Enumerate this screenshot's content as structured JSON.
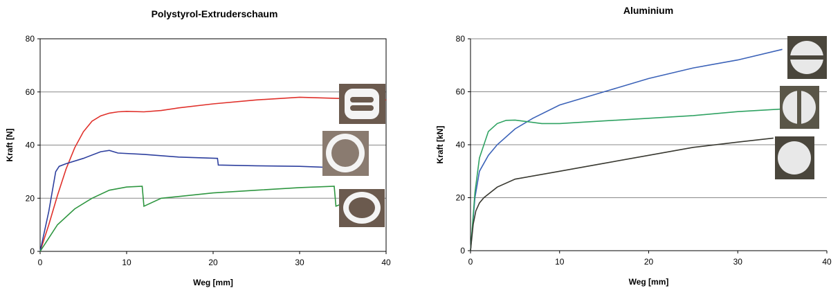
{
  "chart_data": [
    {
      "type": "line",
      "title": "Polystyrol-Extruderschaum",
      "x_label": "Weg [mm]",
      "y_label": "Kraft [N]",
      "xlim": [
        0,
        40
      ],
      "ylim": [
        0,
        80
      ],
      "xticks": [
        0,
        10,
        20,
        30,
        40
      ],
      "yticks": [
        0,
        20,
        40,
        60,
        80
      ],
      "grid": true,
      "series": [
        {
          "color": "#e0302a",
          "x": [
            0,
            1,
            2,
            3,
            4,
            5,
            6,
            7,
            8,
            9,
            10,
            12,
            14,
            16,
            20,
            25,
            30,
            35,
            40
          ],
          "values": [
            0,
            10,
            21,
            31,
            39,
            45,
            49,
            51,
            52,
            52.5,
            52.7,
            52.5,
            53,
            54,
            55.5,
            57,
            58,
            57.5,
            57
          ]
        },
        {
          "color": "#2d3f9e",
          "x": [
            0,
            1,
            1.8,
            2.2,
            3,
            5,
            7,
            8,
            9,
            12,
            16,
            20.5,
            20.6,
            25,
            30,
            34
          ],
          "values": [
            0,
            15,
            30,
            32,
            33,
            35,
            37.5,
            38,
            37,
            36.5,
            35.5,
            35,
            32.5,
            32.2,
            32,
            31.5
          ]
        },
        {
          "color": "#2e9640",
          "x": [
            0,
            1,
            2,
            4,
            6,
            8,
            10,
            11.8,
            12,
            14,
            20,
            25,
            30,
            34,
            34.2,
            35
          ],
          "values": [
            0,
            5,
            10,
            16,
            20,
            23,
            24.2,
            24.5,
            17,
            20,
            22,
            23,
            24,
            24.5,
            17,
            18
          ]
        }
      ]
    },
    {
      "type": "line",
      "title": "Aluminium",
      "x_label": "Weg [mm]",
      "y_label": "Kraft [kN]",
      "xlim": [
        0,
        40
      ],
      "ylim": [
        0,
        80
      ],
      "xticks": [
        0,
        10,
        20,
        30,
        40
      ],
      "yticks": [
        0,
        20,
        40,
        60,
        80
      ],
      "grid": true,
      "series": [
        {
          "color": "#3b62b8",
          "x": [
            0,
            0.5,
            1,
            2,
            3,
            5,
            7,
            10,
            15,
            20,
            25,
            30,
            35
          ],
          "values": [
            0,
            20,
            30,
            36,
            40,
            46,
            50,
            55,
            60,
            65,
            69,
            72,
            76
          ]
        },
        {
          "color": "#2fa262",
          "x": [
            0,
            0.5,
            1,
            2,
            3,
            4,
            5,
            8,
            10,
            15,
            20,
            25,
            30,
            35
          ],
          "values": [
            0,
            22,
            35,
            45,
            48,
            49.2,
            49.3,
            48,
            48,
            49,
            50,
            51,
            52.5,
            53.5
          ]
        },
        {
          "color": "#383830",
          "x": [
            0,
            0.3,
            0.6,
            1,
            1.5,
            3,
            5,
            10,
            15,
            20,
            25,
            30,
            34
          ],
          "values": [
            0,
            10,
            15,
            18,
            20,
            24,
            27,
            30,
            33,
            36,
            39,
            41,
            42.5
          ]
        }
      ]
    }
  ]
}
